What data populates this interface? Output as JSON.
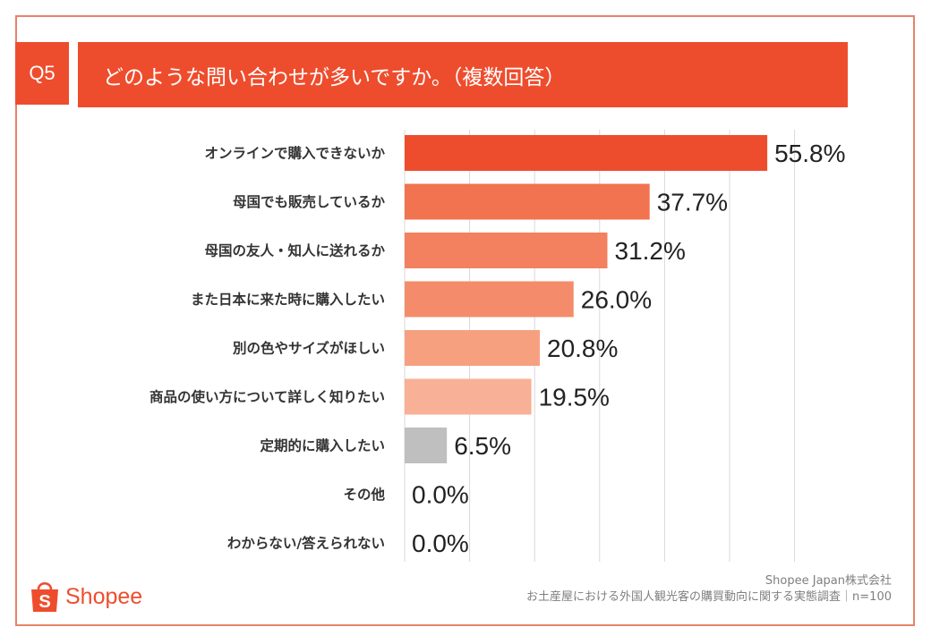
{
  "question": {
    "number": "Q5",
    "title": "どのような問い合わせが多いですか。（複数回答）"
  },
  "chart_data": {
    "type": "bar",
    "orientation": "horizontal",
    "title": "どのような問い合わせが多いですか。（複数回答）",
    "categories": [
      "オンラインで購入できないか",
      "母国でも販売しているか",
      "母国の友人・知人に送れるか",
      "また日本に来た時に購入したい",
      "別の色やサイズがほしい",
      "商品の使い方について詳しく知りたい",
      "定期的に購入したい",
      "その他",
      "わからない/答えられない"
    ],
    "values": [
      55.8,
      37.7,
      31.2,
      26.0,
      20.8,
      19.5,
      6.5,
      0.0,
      0.0
    ],
    "value_labels": [
      "55.8%",
      "37.7%",
      "31.2%",
      "26.0%",
      "20.8%",
      "19.5%",
      "6.5%",
      "0.0%",
      "0.0%"
    ],
    "bar_colors": [
      "#ee4d2d",
      "#f2734f",
      "#f3805e",
      "#f48c6b",
      "#f6a080",
      "#f8b096",
      "#bfbfbf",
      "#bfbfbf",
      "#bfbfbf"
    ],
    "xlim": [
      0,
      60
    ],
    "gridlines": [
      10,
      20,
      30,
      40,
      50,
      60
    ],
    "grid": true,
    "unit": "%"
  },
  "logo": {
    "text": "Shopee",
    "icon": "shopping-bag-icon"
  },
  "source": {
    "company": "Shopee Japan株式会社",
    "survey": "お土産屋における外国人観光客の購買動向に関する実態調査｜n=100"
  },
  "colors": {
    "accent": "#ee4d2d",
    "frame": "#e8826a"
  }
}
